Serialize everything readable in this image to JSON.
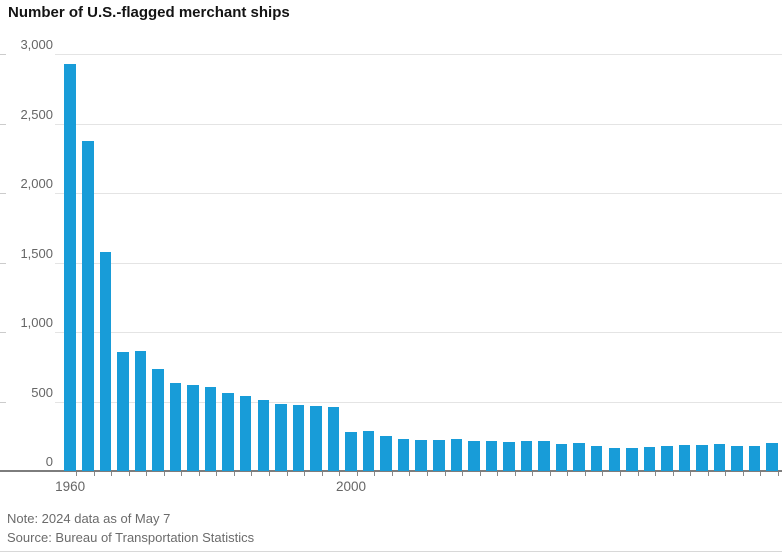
{
  "header": {
    "title": "Number of U.S.-flagged merchant ships"
  },
  "footer": {
    "note": "Note: 2024 data as of May 7",
    "source": "Source: Bureau of Transportation Statistics"
  },
  "chart_data": {
    "type": "bar",
    "title": "Number of U.S.-flagged merchant ships",
    "categories": [
      1960,
      1965,
      1970,
      1975,
      1980,
      1985,
      1990,
      1991,
      1992,
      1993,
      1994,
      1995,
      1996,
      1997,
      1998,
      1999,
      2000,
      2001,
      2002,
      2003,
      2004,
      2005,
      2006,
      2007,
      2008,
      2009,
      2010,
      2011,
      2012,
      2013,
      2014,
      2015,
      2016,
      2017,
      2018,
      2019,
      2020,
      2021,
      2022,
      2023,
      2024
    ],
    "values": [
      2926,
      2376,
      1579,
      857,
      864,
      737,
      636,
      619,
      601,
      560,
      539,
      509,
      481,
      475,
      470,
      461,
      281,
      291,
      254,
      233,
      222,
      225,
      227,
      213,
      217,
      207,
      217,
      213,
      193,
      198,
      178,
      162,
      164,
      174,
      183,
      190,
      190,
      193,
      178,
      183,
      200
    ],
    "xlabel": "",
    "ylabel": "",
    "ylim": [
      0,
      3000
    ],
    "y_ticks": [
      0,
      500,
      1000,
      1500,
      2000,
      2500,
      3000
    ],
    "y_tick_labels": [
      "0",
      "500",
      "1,000",
      "1,500",
      "2,000",
      "2,500",
      "3,000"
    ],
    "x_axis_labels": [
      {
        "text": "1960",
        "year": 1960
      },
      {
        "text": "2000",
        "year": 2000
      }
    ],
    "grid": true,
    "legend_position": "none",
    "bar_color": "#189cd8",
    "gridline_color": "#e4e4e4",
    "axis_color": "#7d7d7d",
    "text_color": "#666666"
  }
}
